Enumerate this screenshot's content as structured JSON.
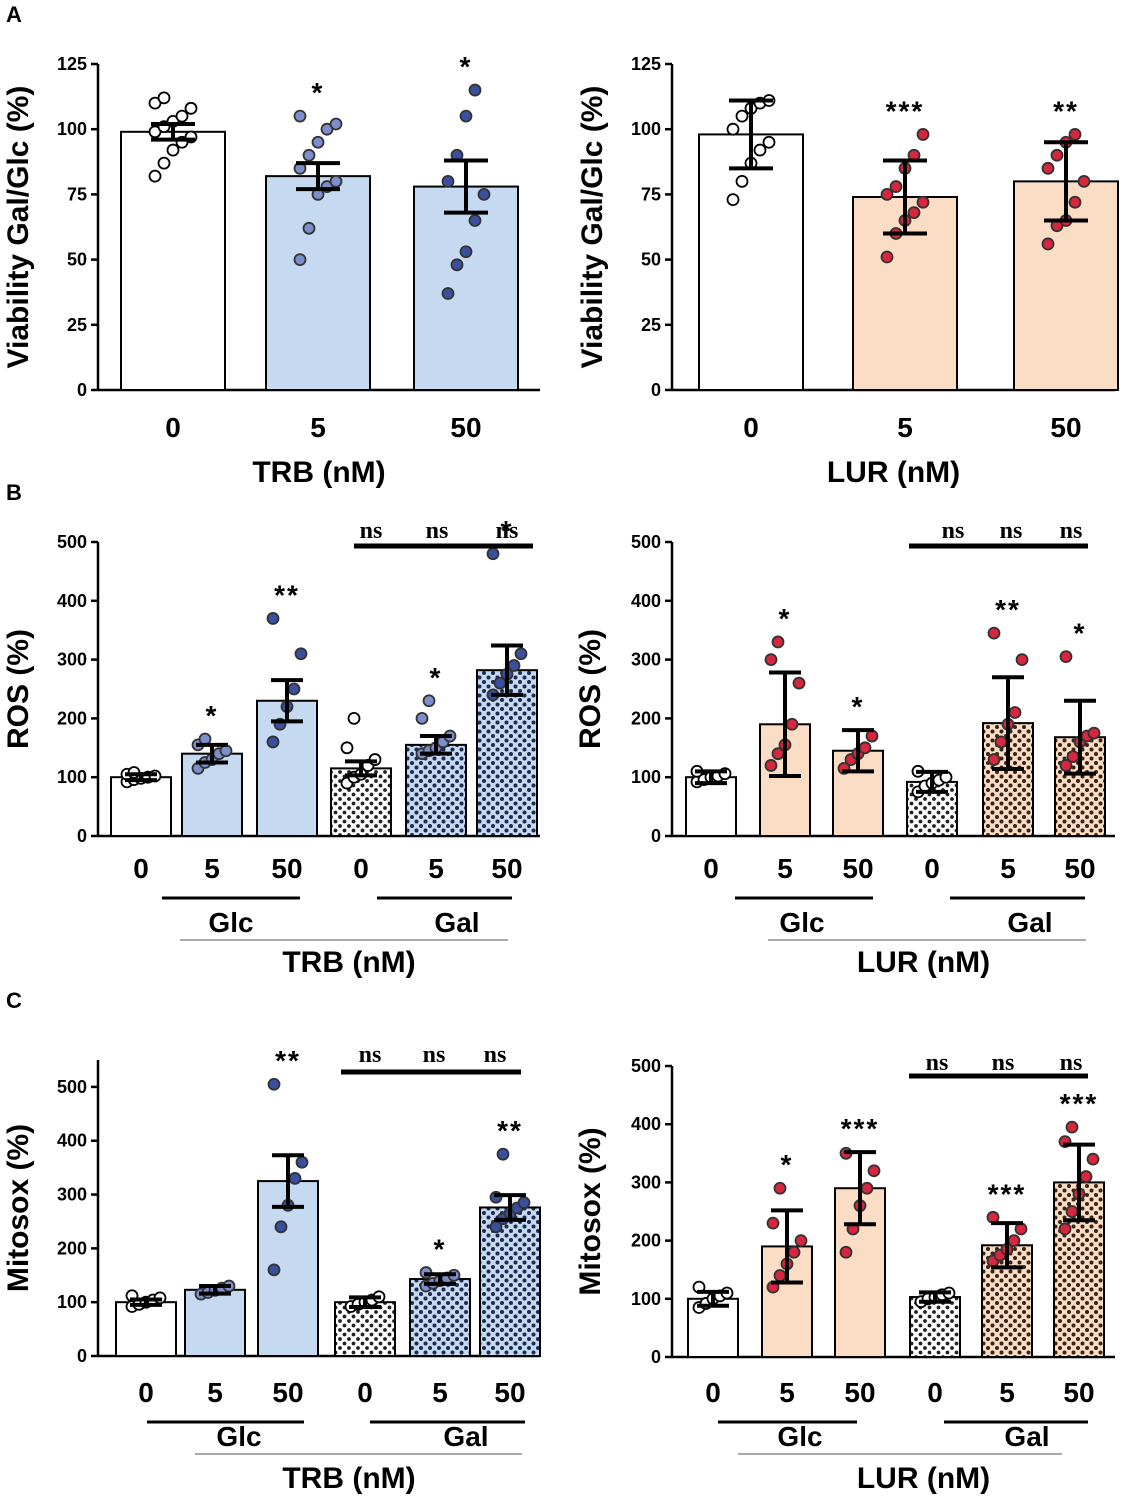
{
  "colors": {
    "blue_fill": "#c5d9f1",
    "blue_dot": "#3a4f9e",
    "blue_dot_light": "#7c8ecb",
    "peach_fill": "#fbdcc4",
    "red_dot": "#d7263d",
    "white": "#ffffff",
    "black": "#000000"
  },
  "panel_labels": [
    "A",
    "B",
    "C"
  ],
  "chart_data": [
    {
      "id": "A_TRB",
      "type": "bar",
      "panel": "A",
      "ylabel": "Viability Gal/Glc (%)",
      "xlabel": "TRB (nM)",
      "categories": [
        "0",
        "5",
        "50"
      ],
      "ylim": [
        0,
        125
      ],
      "yticks": [
        "0",
        "25",
        "50",
        "75",
        "100",
        "125"
      ],
      "values": [
        99,
        82,
        78
      ],
      "errors": [
        3,
        5,
        10
      ],
      "significance": [
        "",
        "*",
        "*"
      ],
      "fills": [
        "white",
        "blue_fill",
        "blue_fill"
      ],
      "dot_colors": [
        "white",
        "blue_dot_light",
        "blue_dot"
      ],
      "points": [
        [
          82,
          87,
          92,
          95,
          97,
          99,
          101,
          103,
          105,
          108,
          110,
          112
        ],
        [
          50,
          62,
          75,
          78,
          80,
          85,
          90,
          95,
          100,
          102,
          105
        ],
        [
          37,
          48,
          53,
          65,
          75,
          80,
          90,
          105,
          115
        ]
      ]
    },
    {
      "id": "A_LUR",
      "type": "bar",
      "panel": "A",
      "ylabel": "Viability Gal/Glc (%)",
      "xlabel": "LUR (nM)",
      "categories": [
        "0",
        "5",
        "50"
      ],
      "ylim": [
        0,
        125
      ],
      "yticks": [
        "0",
        "25",
        "50",
        "75",
        "100",
        "125"
      ],
      "values": [
        98,
        74,
        80
      ],
      "errors": [
        13,
        14,
        15
      ],
      "significance": [
        "",
        "***",
        "**"
      ],
      "fills": [
        "white",
        "peach_fill",
        "peach_fill"
      ],
      "dot_colors": [
        "white",
        "red_dot",
        "red_dot"
      ],
      "points": [
        [
          73,
          80,
          87,
          92,
          95,
          100,
          105,
          108,
          110,
          111
        ],
        [
          51,
          60,
          65,
          68,
          72,
          75,
          78,
          85,
          90,
          98
        ],
        [
          56,
          63,
          65,
          72,
          80,
          85,
          90,
          95,
          98
        ]
      ]
    },
    {
      "id": "B_TRB",
      "type": "bar",
      "panel": "B",
      "ylabel": "ROS (%)",
      "xlabel": "TRB (nM)",
      "groups": [
        "Glc",
        "Gal"
      ],
      "categories": [
        "0",
        "5",
        "50",
        "0",
        "5",
        "50"
      ],
      "ylim": [
        0,
        500
      ],
      "yticks": [
        "0",
        "100",
        "200",
        "300",
        "400",
        "500"
      ],
      "values": [
        100,
        140,
        230,
        115,
        155,
        282
      ],
      "errors": [
        5,
        15,
        35,
        12,
        15,
        42
      ],
      "significance": [
        "",
        "*",
        "**",
        "",
        "*",
        "*"
      ],
      "bracket_labels": [
        "ns",
        "ns",
        "ns"
      ],
      "fills": [
        "white",
        "blue_fill",
        "blue_fill",
        "pattern_white",
        "pattern_blue",
        "pattern_blue"
      ],
      "dot_colors": [
        "white",
        "blue_dot_light",
        "blue_dot",
        "white",
        "blue_dot_light",
        "blue_dot"
      ],
      "points": [
        [
          92,
          96,
          98,
          100,
          102,
          105,
          108
        ],
        [
          115,
          125,
          130,
          140,
          145,
          155,
          165
        ],
        [
          160,
          190,
          220,
          250,
          310,
          370
        ],
        [
          90,
          100,
          105,
          120,
          130,
          150,
          200
        ],
        [
          140,
          145,
          150,
          160,
          170,
          200,
          230
        ],
        [
          240,
          260,
          275,
          290,
          310,
          480
        ]
      ]
    },
    {
      "id": "B_LUR",
      "type": "bar",
      "panel": "B",
      "ylabel": "ROS (%)",
      "xlabel": "LUR (nM)",
      "groups": [
        "Glc",
        "Gal"
      ],
      "categories": [
        "0",
        "5",
        "50",
        "0",
        "5",
        "50"
      ],
      "ylim": [
        0,
        500
      ],
      "yticks": [
        "0",
        "100",
        "200",
        "300",
        "400",
        "500"
      ],
      "values": [
        100,
        190,
        145,
        92,
        192,
        168
      ],
      "errors": [
        10,
        88,
        35,
        17,
        78,
        62
      ],
      "significance": [
        "",
        "*",
        "*",
        "",
        "**",
        "*"
      ],
      "bracket_labels": [
        "ns",
        "ns",
        "ns"
      ],
      "fills": [
        "white",
        "peach_fill",
        "peach_fill",
        "pattern_white",
        "pattern_peach",
        "pattern_peach"
      ],
      "dot_colors": [
        "white",
        "red_dot",
        "red_dot",
        "white",
        "red_dot",
        "red_dot"
      ],
      "points": [
        [
          92,
          96,
          100,
          102,
          106,
          110
        ],
        [
          120,
          140,
          155,
          190,
          260,
          300,
          330
        ],
        [
          115,
          130,
          140,
          150,
          170
        ],
        [
          75,
          85,
          90,
          95,
          100,
          110
        ],
        [
          130,
          160,
          190,
          210,
          300,
          345
        ],
        [
          120,
          135,
          160,
          170,
          175,
          305
        ]
      ]
    },
    {
      "id": "C_TRB",
      "type": "bar",
      "panel": "C",
      "ylabel": "Mitosox (%)",
      "xlabel": "TRB (nM)",
      "groups": [
        "Glc",
        "Gal"
      ],
      "categories": [
        "0",
        "5",
        "50",
        "0",
        "5",
        "50"
      ],
      "ylim": [
        0,
        550
      ],
      "yticks": [
        "0",
        "100",
        "200",
        "300",
        "400",
        "500"
      ],
      "values": [
        100,
        123,
        325,
        100,
        143,
        276
      ],
      "errors": [
        5,
        7,
        48,
        9,
        9,
        23
      ],
      "significance": [
        "",
        "",
        "**",
        "",
        "*",
        "**"
      ],
      "bracket_labels": [
        "ns",
        "ns",
        "ns"
      ],
      "fills": [
        "white",
        "blue_fill",
        "blue_fill",
        "pattern_white",
        "pattern_blue",
        "pattern_blue"
      ],
      "dot_colors": [
        "white",
        "blue_dot_light",
        "blue_dot",
        "white",
        "blue_dot_light",
        "blue_dot"
      ],
      "points": [
        [
          92,
          96,
          100,
          104,
          108,
          112
        ],
        [
          115,
          118,
          122,
          126,
          130
        ],
        [
          160,
          240,
          280,
          330,
          360,
          505
        ],
        [
          92,
          96,
          100,
          104,
          110
        ],
        [
          130,
          135,
          140,
          145,
          150,
          155
        ],
        [
          240,
          255,
          265,
          275,
          285,
          295,
          375
        ]
      ]
    },
    {
      "id": "C_LUR",
      "type": "bar",
      "panel": "C",
      "ylabel": "Mitosox (%)",
      "xlabel": "LUR (nM)",
      "groups": [
        "Glc",
        "Gal"
      ],
      "categories": [
        "0",
        "5",
        "50",
        "0",
        "5",
        "50"
      ],
      "ylim": [
        0,
        500
      ],
      "yticks": [
        "0",
        "100",
        "200",
        "300",
        "400",
        "500"
      ],
      "values": [
        100,
        190,
        290,
        103,
        192,
        300
      ],
      "errors": [
        12,
        62,
        62,
        8,
        38,
        65
      ],
      "significance": [
        "",
        "*",
        "***",
        "",
        "***",
        "***"
      ],
      "bracket_labels": [
        "ns",
        "ns",
        "ns"
      ],
      "fills": [
        "white",
        "peach_fill",
        "peach_fill",
        "pattern_white",
        "pattern_peach",
        "pattern_peach"
      ],
      "dot_colors": [
        "white",
        "red_dot",
        "red_dot",
        "white",
        "red_dot",
        "red_dot"
      ],
      "points": [
        [
          85,
          92,
          100,
          105,
          110,
          120
        ],
        [
          120,
          140,
          160,
          180,
          200,
          230,
          290
        ],
        [
          180,
          220,
          260,
          290,
          320,
          350
        ],
        [
          95,
          100,
          103,
          107,
          110
        ],
        [
          165,
          175,
          185,
          200,
          220,
          240
        ],
        [
          220,
          250,
          280,
          310,
          340,
          370,
          395
        ]
      ]
    }
  ]
}
